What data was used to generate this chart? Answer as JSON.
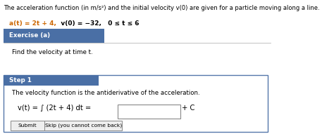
{
  "title_line": "The acceleration function (in m/s²) and the initial velocity v(0) are given for a particle moving along a line.",
  "formula_orange": "a(t) = 2t + 4,",
  "formula_black": "   v(0) = −32,   0 ≤ t ≤ 6",
  "exercise_label": "Exercise (a)",
  "exercise_body": "Find the velocity at time t.",
  "step_label": "Step 1",
  "step_body": "The velocity function is the antiderivative of the acceleration.",
  "integral_left": "v(t) = ∫ (2t + 4) dt =",
  "plus_c": "+ C",
  "submit_btn": "Submit",
  "skip_btn": "Skip (you cannot come back)",
  "bg_color": "#ffffff",
  "header_bg": "#4a6fa5",
  "header_text_color": "#ffffff",
  "step_box_border": "#5577aa",
  "text_color": "#000000",
  "formula_color": "#cc6600"
}
